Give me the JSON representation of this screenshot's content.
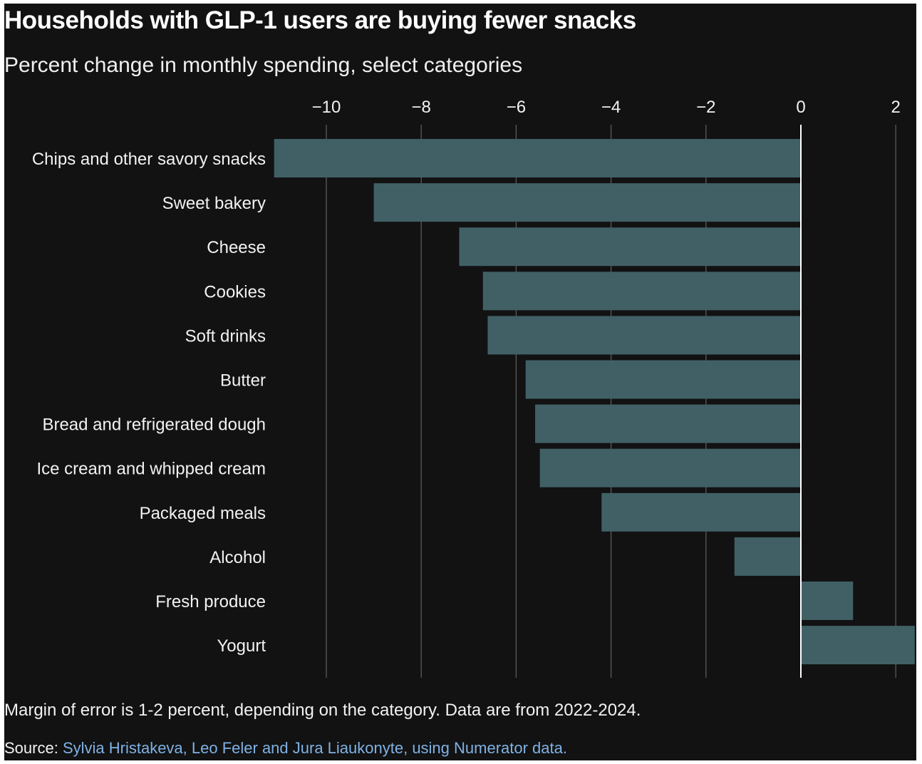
{
  "chart_data": {
    "type": "bar",
    "orientation": "horizontal",
    "title": "Households with GLP-1 users are buying fewer snacks",
    "subtitle": "Percent change in monthly spending, select categories",
    "categories": [
      "Chips and other savory snacks",
      "Sweet bakery",
      "Cheese",
      "Cookies",
      "Soft drinks",
      "Butter",
      "Bread and refrigerated dough",
      "Ice cream and whipped cream",
      "Packaged meals",
      "Alcohol",
      "Fresh produce",
      "Yogurt"
    ],
    "values": [
      -11.1,
      -9.0,
      -7.2,
      -6.7,
      -6.6,
      -5.8,
      -5.6,
      -5.5,
      -4.2,
      -1.4,
      1.1,
      2.4
    ],
    "xticks": [
      -10,
      -8,
      -6,
      -4,
      -2,
      0,
      2
    ],
    "xtick_labels": [
      "−10",
      "−8",
      "−6",
      "−4",
      "−2",
      "0",
      "2"
    ],
    "xlim": [
      -11.1,
      2.4
    ],
    "grid": true,
    "axis_position": "top",
    "colors": {
      "bar": "#406066",
      "background": "#121212",
      "grid": "#5a5a5a",
      "zero_line": "#ffffff",
      "text": "#f2f2f2",
      "link": "#7fb2e5"
    }
  },
  "note": "Margin of error is 1-2 percent, depending on the category. Data are from 2022-2024.",
  "source": {
    "label": "Source:",
    "text": "Sylvia Hristakeva, Leo Feler and Jura Liaukonyte, using Numerator data."
  }
}
